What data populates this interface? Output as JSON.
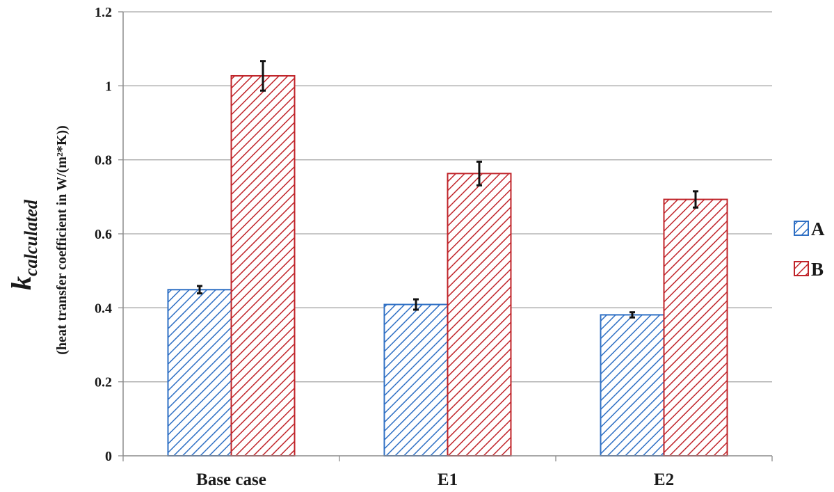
{
  "chart_data": {
    "type": "bar",
    "categories": [
      "Base case",
      "E1",
      "E2"
    ],
    "series": [
      {
        "name": "A",
        "values": [
          0.449,
          0.409,
          0.381
        ],
        "errors": [
          0.01,
          0.014,
          0.007
        ],
        "color": "#2e6fc4"
      },
      {
        "name": "B",
        "values": [
          1.027,
          0.763,
          0.693
        ],
        "errors": [
          0.04,
          0.032,
          0.022
        ],
        "color": "#c0242a"
      }
    ],
    "ylim": [
      0,
      1.2
    ],
    "yticks": [
      "0",
      "0.2",
      "0.4",
      "0.6",
      "0.8",
      "1",
      "1.2"
    ],
    "ylabel_main": "k",
    "ylabel_subscript": "calculated",
    "ylabel_sub": "(heat transfer coefficient  in W/(m²*K))",
    "xlabel": "",
    "title": "",
    "grid": true,
    "legend_position": "right",
    "bar_fill": "diagonal-hatch"
  }
}
